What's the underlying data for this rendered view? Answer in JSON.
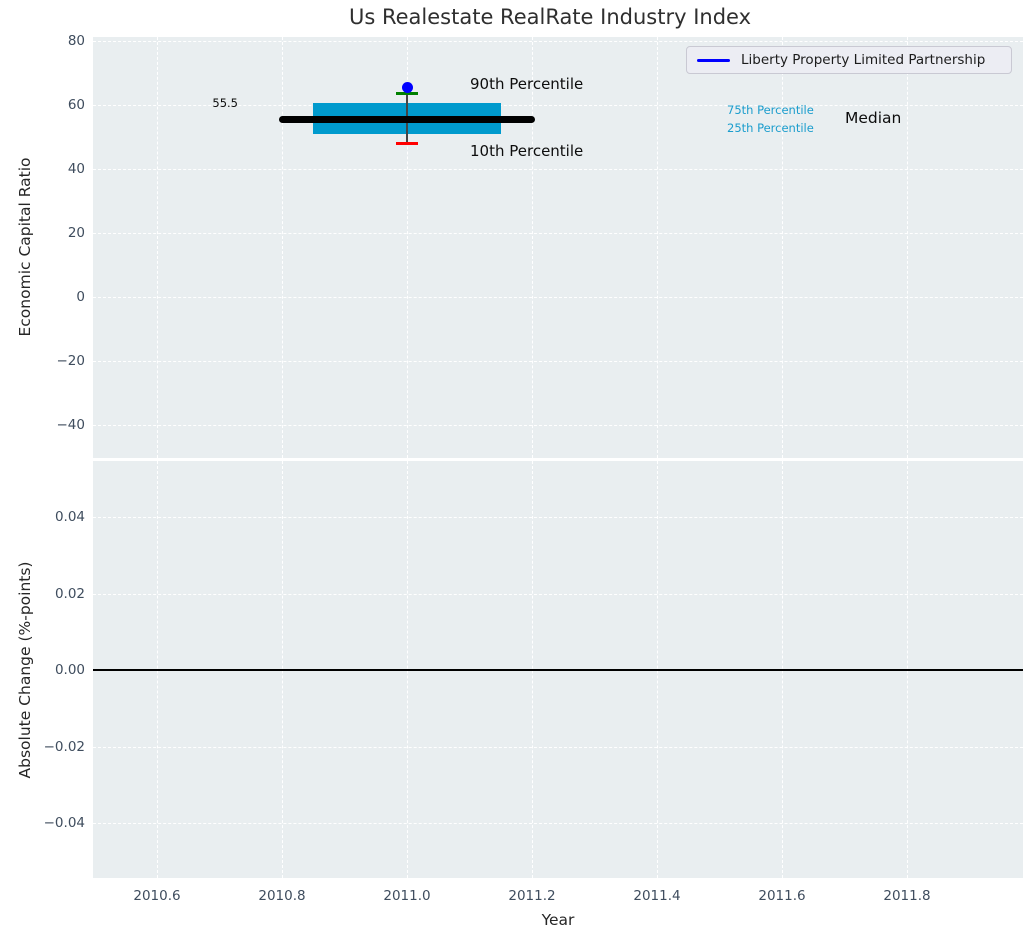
{
  "title": "Us Realestate RealRate Industry Index",
  "legend": {
    "label": "Liberty Property Limited Partnership"
  },
  "colors": {
    "axes_background": "#e9eef0",
    "grid": "#ffffff",
    "tick_label": "#3f4d5e",
    "box_fill": "#009acd",
    "percentile_text": "#1b9dcd",
    "median_line": "#000000",
    "p90_cap": "#008000",
    "p10_cap": "#ff0000",
    "company_dot": "#0000ff",
    "legend_line": "#0000ff",
    "zero_line": "#000000"
  },
  "top_chart": {
    "ylabel": "Economic Capital Ratio",
    "y_tick_labels": [
      "80",
      "60",
      "40",
      "20",
      "0",
      "−20",
      "−40"
    ],
    "y_tick_values": [
      80,
      60,
      40,
      20,
      0,
      -20,
      -40
    ]
  },
  "bottom_chart": {
    "ylabel": "Absolute Change (%-points)",
    "y_tick_labels": [
      "0.04",
      "0.02",
      "0.00",
      "−0.02",
      "−0.04"
    ],
    "y_tick_values": [
      0.04,
      0.02,
      0,
      -0.02,
      -0.04
    ]
  },
  "x_axis": {
    "label": "Year",
    "tick_labels": [
      "2010.6",
      "2010.8",
      "2011.0",
      "2011.2",
      "2011.4",
      "2011.6",
      "2011.8"
    ],
    "tick_values": [
      2010.6,
      2010.8,
      2011.0,
      2011.2,
      2011.4,
      2011.6,
      2011.8
    ]
  },
  "annotations": {
    "median_value": "55.5",
    "p90": "90th Percentile",
    "p10": "10th Percentile",
    "p75": "75th Percentile",
    "p25": "25th Percentile",
    "median": "Median"
  },
  "chart_data": [
    {
      "type": "box",
      "title": "Us Realestate RealRate Industry Index",
      "xlabel": "Year",
      "ylabel": "Economic Capital Ratio",
      "xlim": [
        2010.5,
        2011.99
      ],
      "ylim": [
        -49,
        81.5
      ],
      "x_ticks": [
        2010.6,
        2010.8,
        2011.0,
        2011.2,
        2011.4,
        2011.6,
        2011.8
      ],
      "y_ticks": [
        80,
        60,
        40,
        20,
        0,
        -20,
        -40
      ],
      "grid": "white-dashed",
      "legend_position": "upper right",
      "box": {
        "x": 2011.0,
        "median": 55.5,
        "q1": 50.8,
        "q3": 60.5,
        "p10": 48.0,
        "p90": 63.5,
        "box_halfwidth_years": 0.15,
        "median_halfwidth_years": 0.205,
        "cap_halfwidth_years": 0.018
      },
      "series": [
        {
          "name": "Liberty Property Limited Partnership",
          "x": [
            2011.0
          ],
          "values": [
            65.5
          ],
          "marker": "dot"
        }
      ],
      "annotation_values": {
        "median_label_value": 55.5
      }
    },
    {
      "type": "line",
      "xlabel": "Year",
      "ylabel": "Absolute Change (%-points)",
      "xlim": [
        2010.5,
        2011.99
      ],
      "ylim": [
        -0.0546,
        0.0546
      ],
      "x_ticks": [
        2010.6,
        2010.8,
        2011.0,
        2011.2,
        2011.4,
        2011.6,
        2011.8
      ],
      "y_ticks": [
        0.04,
        0.02,
        0.0,
        -0.02,
        -0.04
      ],
      "grid": "white-dashed",
      "series": [],
      "zero_line": 0.0
    }
  ]
}
